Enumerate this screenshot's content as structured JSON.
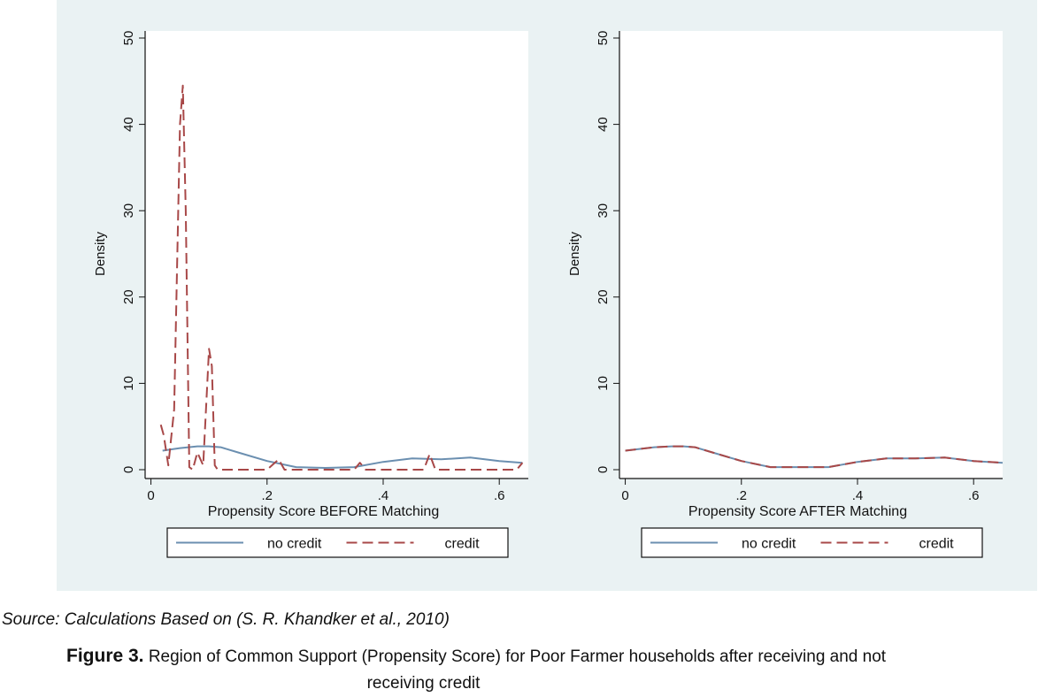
{
  "figure": {
    "background": "#eaf2f3",
    "source": "Source: Calculations Based on (S. R. Khandker et al., 2010)",
    "caption_label": "Figure 3.",
    "caption_text_line1": "Region of Common Support (Propensity Score) for Poor Farmer households after receiving and not",
    "caption_text_line2": "receiving credit"
  },
  "chart_data": [
    {
      "type": "line",
      "xlabel": "Propensity Score BEFORE Matching",
      "ylabel": "Density",
      "xlim": [
        -0.01,
        0.65
      ],
      "ylim": [
        0,
        50
      ],
      "xticks": [
        0,
        0.2,
        0.4,
        0.6
      ],
      "xtick_labels": [
        "0",
        ".2",
        ".4",
        ".6"
      ],
      "yticks": [
        0,
        10,
        20,
        30,
        40,
        50
      ],
      "ytick_labels": [
        "0",
        "10",
        "20",
        "30",
        "40",
        "50"
      ],
      "grid": false,
      "legend": "bottom",
      "series": [
        {
          "name": "no credit",
          "color": "#6b8fb0",
          "dash": "solid",
          "x": [
            0.02,
            0.05,
            0.08,
            0.1,
            0.12,
            0.15,
            0.2,
            0.25,
            0.3,
            0.35,
            0.4,
            0.45,
            0.5,
            0.55,
            0.6,
            0.64
          ],
          "y": [
            2.2,
            2.5,
            2.7,
            2.7,
            2.6,
            2.0,
            1.0,
            0.3,
            0.2,
            0.3,
            0.9,
            1.3,
            1.2,
            1.4,
            1.0,
            0.8
          ]
        },
        {
          "name": "credit",
          "color": "#a84848",
          "dash": "dashed",
          "x": [
            0.017,
            0.022,
            0.03,
            0.04,
            0.05,
            0.055,
            0.06,
            0.066,
            0.072,
            0.08,
            0.09,
            0.1,
            0.105,
            0.11,
            0.115,
            0.12,
            0.2,
            0.22,
            0.23,
            0.35,
            0.36,
            0.37,
            0.47,
            0.48,
            0.49,
            0.63,
            0.64
          ],
          "y": [
            5.2,
            4.0,
            0.5,
            7.0,
            40.0,
            44.5,
            30.0,
            0.3,
            0.0,
            2.0,
            0.5,
            14.0,
            12.0,
            0.5,
            0.0,
            0.0,
            0.0,
            1.2,
            0.0,
            0.0,
            0.8,
            0.0,
            0.0,
            1.8,
            0.0,
            0.0,
            0.8
          ]
        }
      ]
    },
    {
      "type": "line",
      "xlabel": "Propensity Score AFTER Matching",
      "ylabel": "Density",
      "xlim": [
        -0.01,
        0.65
      ],
      "ylim": [
        0,
        50
      ],
      "xticks": [
        0,
        0.2,
        0.4,
        0.6
      ],
      "xtick_labels": [
        "0",
        ".2",
        ".4",
        ".6"
      ],
      "yticks": [
        0,
        10,
        20,
        30,
        40,
        50
      ],
      "ytick_labels": [
        "0",
        "10",
        "20",
        "30",
        "40",
        "50"
      ],
      "grid": false,
      "legend": "bottom",
      "series": [
        {
          "name": "no credit",
          "color": "#6b8fb0",
          "dash": "solid",
          "x": [
            0.0,
            0.05,
            0.08,
            0.1,
            0.12,
            0.15,
            0.2,
            0.25,
            0.3,
            0.35,
            0.4,
            0.45,
            0.5,
            0.55,
            0.6,
            0.65
          ],
          "y": [
            2.2,
            2.6,
            2.7,
            2.7,
            2.6,
            2.0,
            1.0,
            0.3,
            0.3,
            0.3,
            0.9,
            1.3,
            1.3,
            1.4,
            1.0,
            0.8
          ]
        },
        {
          "name": "credit",
          "color": "#a84848",
          "dash": "dashed",
          "x": [
            0.0,
            0.05,
            0.08,
            0.1,
            0.12,
            0.15,
            0.2,
            0.25,
            0.3,
            0.35,
            0.4,
            0.45,
            0.5,
            0.55,
            0.6,
            0.65
          ],
          "y": [
            2.2,
            2.6,
            2.7,
            2.7,
            2.6,
            2.0,
            1.0,
            0.3,
            0.3,
            0.3,
            0.9,
            1.3,
            1.3,
            1.4,
            1.0,
            0.8
          ]
        }
      ]
    }
  ]
}
